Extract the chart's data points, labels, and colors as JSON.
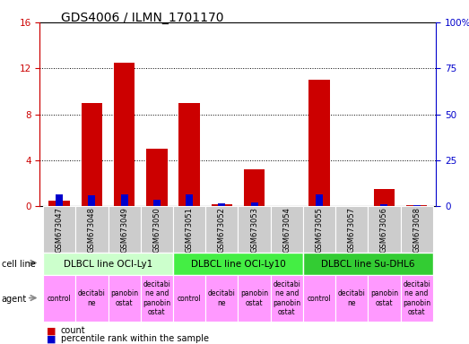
{
  "title": "GDS4006 / ILMN_1701170",
  "samples": [
    "GSM673047",
    "GSM673048",
    "GSM673049",
    "GSM673050",
    "GSM673051",
    "GSM673052",
    "GSM673053",
    "GSM673054",
    "GSM673055",
    "GSM673057",
    "GSM673056",
    "GSM673058"
  ],
  "count_values": [
    0.5,
    9.0,
    12.5,
    5.0,
    9.0,
    0.2,
    3.2,
    0.0,
    11.0,
    0.0,
    1.5,
    0.1
  ],
  "percentile_values": [
    6.5,
    6.0,
    6.5,
    3.5,
    6.5,
    1.5,
    2.0,
    0.0,
    6.5,
    0.0,
    1.0,
    0.5
  ],
  "left_ylim": [
    0,
    16
  ],
  "right_ylim": [
    0,
    100
  ],
  "left_yticks": [
    0,
    4,
    8,
    12,
    16
  ],
  "right_yticks": [
    0,
    25,
    50,
    75,
    100
  ],
  "count_color": "#cc0000",
  "percentile_color": "#0000cc",
  "cell_lines": [
    {
      "label": "DLBCL line OCI-Ly1",
      "start": 0,
      "end": 3,
      "color": "#ccffcc"
    },
    {
      "label": "DLBCL line OCI-Ly10",
      "start": 4,
      "end": 7,
      "color": "#44ee44"
    },
    {
      "label": "DLBCL line Su-DHL6",
      "start": 8,
      "end": 11,
      "color": "#33cc33"
    }
  ],
  "agents": [
    "control",
    "decitabi\nne",
    "panobin\nostat",
    "decitabi\nne and\npanobin\nostat",
    "control",
    "decitabi\nne",
    "panobin\nostat",
    "decitabi\nne and\npanobin\nostat",
    "control",
    "decitabi\nne",
    "panobin\nostat",
    "decitabi\nne and\npanobin\nostat"
  ],
  "tick_label_bg": "#cccccc",
  "agent_bg": "#ff99ff",
  "left_tick_color": "#cc0000",
  "right_tick_color": "#0000cc"
}
